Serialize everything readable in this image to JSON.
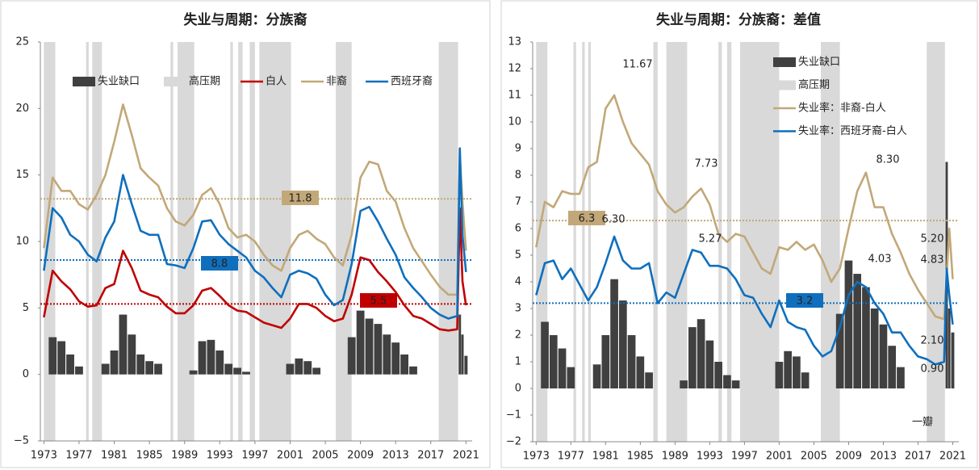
{
  "chart_data": [
    {
      "type": "combo",
      "title": "失业与周期：分族裔",
      "xlim": [
        1972.6,
        2021.7
      ],
      "ylim": [
        -5,
        25
      ],
      "xticks": [
        1973,
        1977,
        1981,
        1985,
        1989,
        1993,
        1997,
        2001,
        2005,
        2009,
        2013,
        2017,
        2021
      ],
      "yticks": [
        {
          "value": -5,
          "label": "−5"
        },
        0,
        5,
        10,
        15,
        20,
        25
      ],
      "x": [
        1973,
        1974,
        1975,
        1976,
        1977,
        1978,
        1979,
        1980,
        1981,
        1982,
        1983,
        1984,
        1985,
        1986,
        1987,
        1988,
        1989,
        1990,
        1991,
        1992,
        1993,
        1994,
        1995,
        1996,
        1997,
        1998,
        1999,
        2000,
        2001,
        2002,
        2003,
        2004,
        2005,
        2006,
        2007,
        2008,
        2009,
        2010,
        2011,
        2012,
        2013,
        2014,
        2015,
        2016,
        2017,
        2018,
        2019,
        2020,
        2020.3,
        2020.6,
        2021
      ],
      "spans": {
        "name": "高压期",
        "color": "#d9d9d9",
        "ranges": [
          [
            1973,
            1974.3
          ],
          [
            1977.8,
            1978.1
          ],
          [
            1978.5,
            1979.6
          ],
          [
            1987.4,
            1987.7
          ],
          [
            1988.2,
            1990.1
          ],
          [
            1994.2,
            1994.5
          ],
          [
            1995.1,
            1995.6
          ],
          [
            1996.4,
            1997.0
          ],
          [
            1997.5,
            2001.1
          ],
          [
            2006.2,
            2008.0
          ],
          [
            2017.9,
            2020.1
          ]
        ]
      },
      "series": [
        {
          "name": "失业缺口",
          "type": "bar",
          "color": "#404040",
          "values": [
            0,
            2.8,
            2.5,
            1.5,
            0.6,
            0,
            0,
            0.8,
            1.8,
            4.5,
            3.0,
            1.5,
            1.0,
            0.8,
            0,
            0,
            0,
            0.3,
            2.5,
            2.6,
            1.8,
            0.8,
            0.5,
            0.2,
            0,
            0,
            0,
            0,
            0.8,
            1.2,
            1.0,
            0.5,
            0,
            0,
            0,
            2.8,
            4.8,
            4.2,
            3.8,
            3.0,
            2.4,
            1.5,
            0.6,
            0,
            0,
            0,
            0,
            0,
            4.5,
            3.0,
            1.4
          ]
        },
        {
          "name": "白人",
          "type": "line",
          "color": "#c00000",
          "values": [
            4.3,
            7.8,
            7.0,
            6.4,
            5.5,
            5.1,
            5.2,
            6.5,
            6.8,
            9.3,
            8.0,
            6.3,
            6.0,
            5.8,
            5.1,
            4.6,
            4.6,
            5.2,
            6.3,
            6.5,
            5.9,
            5.2,
            4.8,
            4.7,
            4.3,
            3.9,
            3.7,
            3.5,
            4.2,
            5.3,
            5.3,
            5.0,
            4.4,
            4.0,
            4.2,
            6.0,
            8.8,
            8.6,
            7.7,
            7.0,
            6.2,
            5.2,
            4.4,
            4.2,
            3.8,
            3.4,
            3.3,
            3.4,
            12.5,
            7.0,
            5.2
          ]
        },
        {
          "name": "非裔",
          "type": "line",
          "color": "#c2a878",
          "values": [
            9.5,
            14.8,
            13.8,
            13.8,
            12.8,
            12.4,
            13.5,
            15.0,
            17.5,
            20.3,
            18.0,
            15.5,
            14.8,
            14.2,
            12.5,
            11.5,
            11.2,
            12.0,
            13.5,
            14.0,
            12.8,
            11.0,
            10.3,
            10.5,
            10.0,
            9.0,
            8.2,
            7.8,
            9.5,
            10.5,
            10.8,
            10.2,
            9.8,
            8.8,
            8.2,
            10.5,
            14.8,
            16.0,
            15.8,
            13.8,
            13.0,
            11.0,
            9.5,
            8.5,
            7.5,
            6.6,
            6.0,
            6.0,
            16.5,
            13.0,
            9.3
          ]
        },
        {
          "name": "西班牙裔",
          "type": "line",
          "color": "#0f6fbd",
          "values": [
            7.8,
            12.5,
            11.8,
            10.5,
            10.0,
            9.0,
            8.5,
            10.3,
            11.5,
            15.0,
            12.8,
            10.8,
            10.5,
            10.5,
            8.3,
            8.2,
            8.0,
            9.5,
            11.5,
            11.6,
            10.5,
            9.8,
            9.3,
            8.8,
            7.8,
            7.3,
            6.5,
            5.8,
            7.5,
            7.8,
            7.6,
            7.2,
            6.0,
            5.2,
            5.6,
            8.3,
            12.3,
            12.6,
            11.5,
            10.2,
            9.0,
            7.3,
            6.5,
            5.8,
            5.0,
            4.5,
            4.2,
            4.4,
            17.0,
            10.5,
            7.7
          ]
        }
      ],
      "reference_lines": [
        {
          "value": 13.2,
          "color": "#c2a878"
        },
        {
          "value": 8.6,
          "color": "#0f6fbd"
        },
        {
          "value": 5.3,
          "color": "#c00000"
        }
      ],
      "annotations": [
        {
          "text": "11.8",
          "color": "#c2a878",
          "box": true
        },
        {
          "text": "8.8",
          "color": "#0f6fbd",
          "box": true
        },
        {
          "text": "5.5",
          "color": "#c00000",
          "box": true
        }
      ]
    },
    {
      "type": "combo",
      "title": "失业与周期：分族裔：差值",
      "xlim": [
        1972.6,
        2021.7
      ],
      "ylim": [
        -2,
        13
      ],
      "xticks": [
        1973,
        1977,
        1981,
        1985,
        1989,
        1993,
        1997,
        2001,
        2005,
        2009,
        2013,
        2017,
        2021
      ],
      "yticks": [
        {
          "value": -2,
          "label": "−2"
        },
        {
          "value": -1,
          "label": "−1"
        },
        0,
        1,
        2,
        3,
        4,
        5,
        6,
        7,
        8,
        9,
        10,
        11,
        12,
        13
      ],
      "x": [
        1973,
        1974,
        1975,
        1976,
        1977,
        1978,
        1979,
        1980,
        1981,
        1982,
        1983,
        1984,
        1985,
        1986,
        1987,
        1988,
        1989,
        1990,
        1991,
        1992,
        1993,
        1994,
        1995,
        1996,
        1997,
        1998,
        1999,
        2000,
        2001,
        2002,
        2003,
        2004,
        2005,
        2006,
        2007,
        2008,
        2009,
        2010,
        2011,
        2012,
        2013,
        2014,
        2015,
        2016,
        2017,
        2018,
        2019,
        2020,
        2020.3,
        2020.6,
        2021
      ],
      "spans": {
        "name": "高压期",
        "color": "#d9d9d9",
        "ranges": [
          [
            1973,
            1974.3
          ],
          [
            1977.3,
            1977.6
          ],
          [
            1978.3,
            1978.6
          ],
          [
            1979.0,
            1979.3
          ],
          [
            1986.5,
            1987.0
          ],
          [
            1988.0,
            1990.4
          ],
          [
            1994.0,
            1994.4
          ],
          [
            1995.0,
            1995.5
          ],
          [
            1996.5,
            2001.0
          ],
          [
            2005.8,
            2008.0
          ],
          [
            2018.0,
            2020.1
          ]
        ]
      },
      "series": [
        {
          "name": "失业缺口",
          "type": "bar",
          "color": "#404040",
          "values": [
            0,
            2.5,
            2.0,
            1.5,
            0.8,
            0,
            0,
            0.9,
            2.0,
            4.1,
            3.3,
            2.0,
            1.2,
            0.6,
            0,
            0,
            0,
            0.3,
            2.3,
            2.6,
            1.8,
            1.0,
            0.5,
            0.3,
            0,
            0,
            0,
            0,
            1.0,
            1.4,
            1.2,
            0.6,
            0,
            0,
            0,
            2.8,
            4.8,
            4.3,
            3.8,
            3.0,
            2.4,
            1.6,
            0.8,
            0,
            0,
            0,
            0,
            0,
            8.5,
            3.0,
            2.1
          ]
        },
        {
          "name": "失业率：非裔-白人",
          "type": "line",
          "color": "#c2a878",
          "values": [
            5.3,
            7.0,
            6.8,
            7.4,
            7.3,
            7.3,
            8.3,
            8.5,
            10.5,
            11.0,
            10.0,
            9.2,
            8.8,
            8.4,
            7.4,
            6.9,
            6.6,
            6.8,
            7.2,
            7.5,
            6.9,
            5.8,
            5.5,
            5.8,
            5.7,
            5.1,
            4.5,
            4.3,
            5.3,
            5.2,
            5.5,
            5.2,
            5.4,
            4.8,
            4.0,
            4.5,
            6.0,
            7.4,
            8.1,
            6.8,
            6.8,
            5.8,
            5.1,
            4.3,
            3.7,
            3.2,
            2.7,
            2.6,
            4.2,
            6.0,
            4.1
          ]
        },
        {
          "name": "失业率：西班牙裔-白人",
          "type": "line",
          "color": "#0f6fbd",
          "values": [
            3.5,
            4.7,
            4.8,
            4.1,
            4.5,
            3.9,
            3.3,
            3.8,
            4.7,
            5.7,
            4.8,
            4.5,
            4.5,
            4.7,
            3.2,
            3.6,
            3.4,
            4.3,
            5.2,
            5.1,
            4.6,
            4.6,
            4.5,
            4.1,
            3.5,
            3.4,
            2.8,
            2.3,
            3.3,
            2.5,
            2.3,
            2.2,
            1.6,
            1.2,
            1.4,
            2.3,
            3.5,
            4.0,
            3.8,
            3.2,
            2.8,
            2.1,
            2.1,
            1.6,
            1.2,
            1.1,
            0.9,
            1.0,
            4.5,
            3.5,
            2.4
          ]
        }
      ],
      "reference_lines": [
        {
          "value": 6.3,
          "color": "#c2a878"
        },
        {
          "value": 3.2,
          "color": "#0f6fbd"
        }
      ],
      "annotations": [
        {
          "text": "6.3",
          "color": "#c2a878",
          "box": true
        },
        {
          "text": "3.2",
          "color": "#0f6fbd",
          "box": true
        },
        {
          "text": "11.67",
          "color": "#c00000"
        },
        {
          "text": "7.73",
          "color": "#c00000"
        },
        {
          "text": "8.30",
          "color": "#c00000"
        },
        {
          "text": "6.30",
          "color": "#0f6fbd"
        },
        {
          "text": "5.27",
          "color": "#0f6fbd"
        },
        {
          "text": "4.03",
          "color": "#0f6fbd"
        },
        {
          "text": "5.20",
          "color": "#c00000"
        },
        {
          "text": "4.83",
          "color": "#0f6fbd"
        },
        {
          "text": "2.10",
          "color": "#c00000"
        },
        {
          "text": "0.90",
          "color": "#0f6fbd"
        }
      ],
      "watermark": "一瓣"
    }
  ]
}
